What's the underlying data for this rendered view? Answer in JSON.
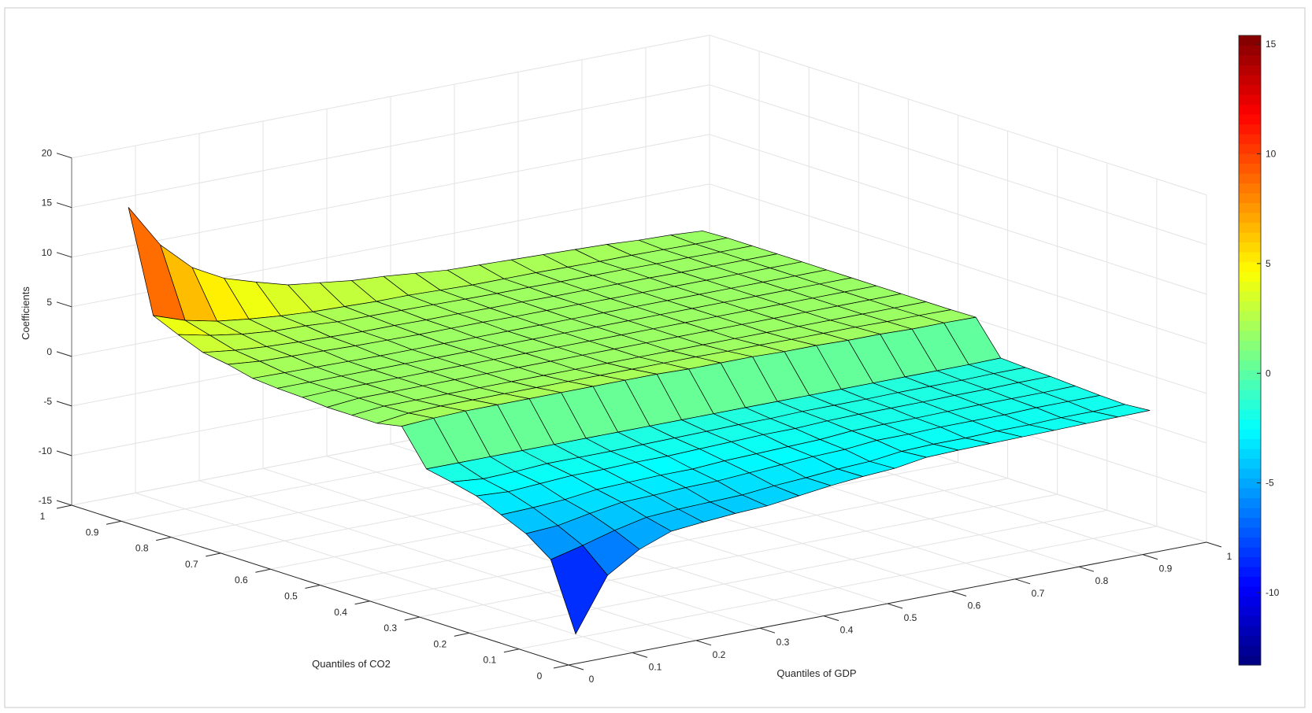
{
  "chart_data": {
    "type": "surface",
    "title": "",
    "xlabel": "Quantiles of GDP",
    "ylabel": "Quantiles of CO2",
    "zlabel": "Coefficients",
    "x": [
      0.05,
      0.1,
      0.15,
      0.2,
      0.25,
      0.3,
      0.35,
      0.4,
      0.45,
      0.5,
      0.55,
      0.6,
      0.65,
      0.7,
      0.75,
      0.8,
      0.85,
      0.9,
      0.95
    ],
    "y": [
      0.05,
      0.1,
      0.15,
      0.2,
      0.25,
      0.3,
      0.35,
      0.4,
      0.45,
      0.5,
      0.55,
      0.6,
      0.65,
      0.7,
      0.75,
      0.8,
      0.85,
      0.9,
      0.95
    ],
    "z_rows_by_y": [
      [
        -13.3,
        -8.0,
        -6.0,
        -4.8,
        -4.5,
        -4.25,
        -4.1,
        -3.7,
        -3.3,
        -3.0,
        -2.8,
        -2.3,
        -2.2,
        -2.15,
        -2.1,
        -2.05,
        -2.0,
        -1.95,
        -1.9
      ],
      [
        -6.6,
        -5.8,
        -4.9,
        -4.2,
        -4.0,
        -3.9,
        -3.8,
        -3.5,
        -3.3,
        -3.05,
        -2.9,
        -2.5,
        -2.4,
        -2.4,
        -2.3,
        -2.3,
        -2.2,
        -2.2,
        -2.1
      ],
      [
        -4.8,
        -4.6,
        -4.0,
        -3.5,
        -3.4,
        -3.25,
        -3.2,
        -3.0,
        -2.8,
        -2.6,
        -2.5,
        -2.2,
        -2.2,
        -2.1,
        -2.1,
        -2.1,
        -2.0,
        -2.0,
        -2.0
      ],
      [
        -3.7,
        -3.6,
        -3.4,
        -3.0,
        -2.9,
        -2.8,
        -2.8,
        -2.6,
        -2.5,
        -2.4,
        -2.3,
        -2.05,
        -2.0,
        -2.0,
        -1.95,
        -1.9,
        -1.9,
        -1.9,
        -1.85
      ],
      [
        -2.6,
        -2.8,
        -2.6,
        -2.4,
        -2.4,
        -2.3,
        -2.3,
        -2.2,
        -2.1,
        -2.0,
        -2.0,
        -1.85,
        -1.8,
        -1.8,
        -1.8,
        -1.75,
        -1.75,
        -1.7,
        -1.7
      ],
      [
        -2.0,
        -2.3,
        -2.2,
        -2.0,
        -2.0,
        -2.0,
        -1.95,
        -1.9,
        -1.85,
        -1.8,
        -1.8,
        -1.7,
        -1.7,
        -1.7,
        -1.65,
        -1.65,
        -1.65,
        -1.6,
        -1.6
      ],
      [
        -1.5,
        -1.5,
        -1.5,
        -1.5,
        -1.5,
        -1.5,
        -1.5,
        -1.5,
        -1.5,
        -1.5,
        -1.5,
        -1.5,
        -1.5,
        -1.5,
        -1.5,
        -1.5,
        -1.5,
        -1.5,
        -1.45
      ],
      [
        2.0,
        2.2,
        2.3,
        2.3,
        2.3,
        2.3,
        2.3,
        2.3,
        2.3,
        2.2,
        2.2,
        2.2,
        2.1,
        2.1,
        2.0,
        2.0,
        1.9,
        1.9,
        1.85
      ],
      [
        1.5,
        1.9,
        2.0,
        2.0,
        2.0,
        2.0,
        2.0,
        2.0,
        2.0,
        2.0,
        2.0,
        1.95,
        1.95,
        1.9,
        1.9,
        1.9,
        1.85,
        1.85,
        1.8
      ],
      [
        1.5,
        1.8,
        1.8,
        1.8,
        1.8,
        1.8,
        1.8,
        1.8,
        1.8,
        1.8,
        1.8,
        1.8,
        1.8,
        1.8,
        1.8,
        1.8,
        1.8,
        1.8,
        1.8
      ],
      [
        1.5,
        1.8,
        1.8,
        1.8,
        1.8,
        1.8,
        1.8,
        1.8,
        1.8,
        1.8,
        1.8,
        1.8,
        1.8,
        1.8,
        1.8,
        1.8,
        1.8,
        1.8,
        1.8
      ],
      [
        1.7,
        1.8,
        1.8,
        1.8,
        1.8,
        1.8,
        1.8,
        1.8,
        1.8,
        1.8,
        1.8,
        1.8,
        1.8,
        1.8,
        1.8,
        1.8,
        1.8,
        1.8,
        1.8
      ],
      [
        1.8,
        1.8,
        1.8,
        1.8,
        1.8,
        1.8,
        1.8,
        1.8,
        1.8,
        1.8,
        1.8,
        1.8,
        1.8,
        1.8,
        1.8,
        1.8,
        1.8,
        1.8,
        1.8
      ],
      [
        2.0,
        1.95,
        1.9,
        1.85,
        1.8,
        1.8,
        1.8,
        1.8,
        1.8,
        1.8,
        1.8,
        1.8,
        1.8,
        1.8,
        1.8,
        1.8,
        1.8,
        1.8,
        1.8
      ],
      [
        2.6,
        2.3,
        2.2,
        2.1,
        2.0,
        1.95,
        1.9,
        1.9,
        1.9,
        1.85,
        1.85,
        1.85,
        1.8,
        1.8,
        1.8,
        1.8,
        1.8,
        1.8,
        1.8
      ],
      [
        3.0,
        2.6,
        2.35,
        2.2,
        2.1,
        2.0,
        2.0,
        1.95,
        1.95,
        1.9,
        1.9,
        1.85,
        1.85,
        1.85,
        1.85,
        1.8,
        1.8,
        1.8,
        1.8
      ],
      [
        4.0,
        3.3,
        2.8,
        2.5,
        2.4,
        2.2,
        2.15,
        2.1,
        2.05,
        2.0,
        1.95,
        1.95,
        1.9,
        1.9,
        1.9,
        1.85,
        1.85,
        1.8,
        1.8
      ],
      [
        5.1,
        4.0,
        3.3,
        2.9,
        2.6,
        2.4,
        2.3,
        2.2,
        2.2,
        2.1,
        2.0,
        2.0,
        2.0,
        1.95,
        1.9,
        1.9,
        1.85,
        1.8,
        1.8
      ],
      [
        15.2,
        10.8,
        7.9,
        6.2,
        5.2,
        4.3,
        3.9,
        3.5,
        3.3,
        3.0,
        2.7,
        2.6,
        2.5,
        2.4,
        2.3,
        2.2,
        2.0,
        1.9,
        1.7
      ]
    ],
    "xlim": [
      0,
      1
    ],
    "ylim": [
      0,
      1
    ],
    "zlim": [
      -15,
      20
    ],
    "xticks": [
      "0",
      "0.1",
      "0.2",
      "0.3",
      "0.4",
      "0.5",
      "0.6",
      "0.7",
      "0.8",
      "0.9",
      "1"
    ],
    "yticks": [
      "0",
      "0.1",
      "0.2",
      "0.3",
      "0.4",
      "0.5",
      "0.6",
      "0.7",
      "0.8",
      "0.9",
      "1"
    ],
    "zticks": [
      "-15",
      "-10",
      "-5",
      "0",
      "5",
      "10",
      "15",
      "20"
    ],
    "grid": true,
    "colormap": "jet",
    "clim": [
      -13.3,
      15.4
    ],
    "colorbar": {
      "location": "right",
      "ticks": [
        "-10",
        "-5",
        "0",
        "5",
        "10",
        "15"
      ]
    },
    "edge_color": "#000000",
    "grid_color": "#e3e3e3",
    "axis_color": "#262626"
  }
}
